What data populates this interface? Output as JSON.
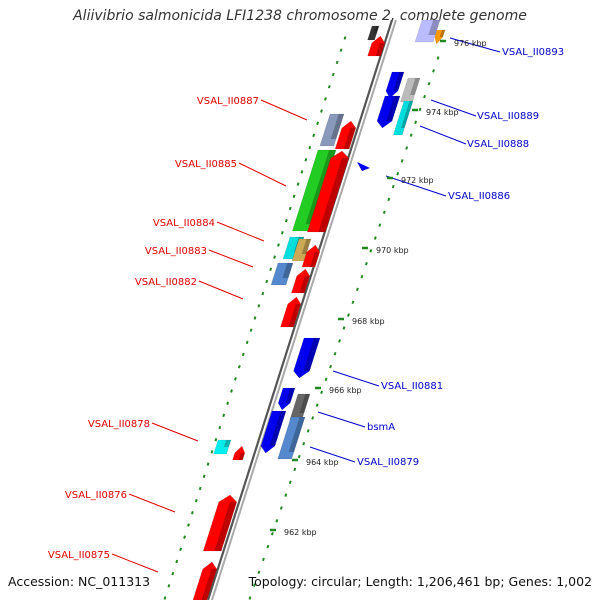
{
  "title": "Aliivibrio salmonicida LFI1238 chromosome 2, complete genome",
  "accession": "Accession: NC_011313",
  "summary": "Topology: circular; Length: 1,206,461 bp; Genes: 1,002",
  "colors": {
    "forward_label": "#e00000",
    "reverse_label": "#0000cc",
    "ticks": "#228822",
    "backbone": "#888888"
  },
  "positions": [
    {
      "text": "976 kbp"
    },
    {
      "text": "974 kbp"
    },
    {
      "text": "972 kbp"
    },
    {
      "text": "970 kbp"
    },
    {
      "text": "968 kbp"
    },
    {
      "text": "966 kbp"
    },
    {
      "text": "964 kbp"
    },
    {
      "text": "962 kbp"
    }
  ],
  "gene_labels": [
    {
      "text": "VSAL_II0893",
      "strand": "reverse"
    },
    {
      "text": "VSAL_II0889",
      "strand": "reverse"
    },
    {
      "text": "VSAL_II0888",
      "strand": "reverse"
    },
    {
      "text": "VSAL_II0886",
      "strand": "reverse"
    },
    {
      "text": "VSAL_II0881",
      "strand": "reverse"
    },
    {
      "text": "bsmA",
      "strand": "reverse"
    },
    {
      "text": "VSAL_II0879",
      "strand": "reverse"
    },
    {
      "text": "VSAL_II0887",
      "strand": "forward"
    },
    {
      "text": "VSAL_II0885",
      "strand": "forward"
    },
    {
      "text": "VSAL_II0884",
      "strand": "forward"
    },
    {
      "text": "VSAL_II0883",
      "strand": "forward"
    },
    {
      "text": "VSAL_II0882",
      "strand": "forward"
    },
    {
      "text": "VSAL_II0878",
      "strand": "forward"
    },
    {
      "text": "VSAL_II0876",
      "strand": "forward"
    },
    {
      "text": "VSAL_II0875",
      "strand": "forward"
    }
  ]
}
